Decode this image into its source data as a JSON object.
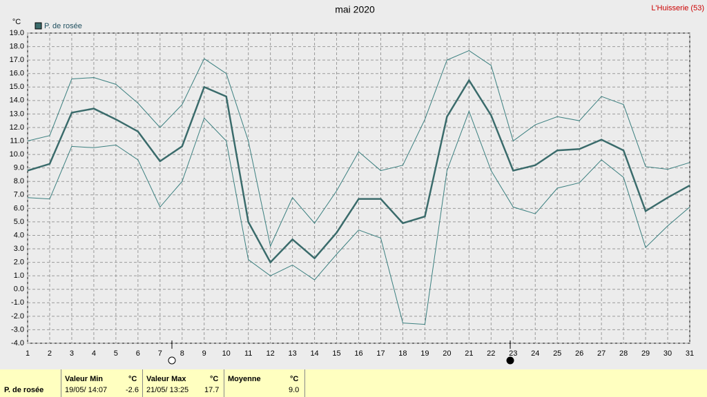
{
  "chart_data": {
    "type": "line",
    "title": "mai 2020",
    "location": "L'Huisserie (53)",
    "y_unit": "°C",
    "x": [
      1,
      2,
      3,
      4,
      5,
      6,
      7,
      8,
      9,
      10,
      11,
      12,
      13,
      14,
      15,
      16,
      17,
      18,
      19,
      20,
      21,
      22,
      23,
      24,
      25,
      26,
      27,
      28,
      29,
      30,
      31
    ],
    "xlim": [
      1,
      31
    ],
    "xticks": [
      1,
      2,
      3,
      4,
      5,
      6,
      7,
      8,
      9,
      10,
      11,
      12,
      13,
      14,
      15,
      16,
      17,
      18,
      19,
      20,
      21,
      22,
      23,
      24,
      25,
      26,
      27,
      28,
      29,
      30,
      31
    ],
    "ylim": [
      -4,
      19
    ],
    "yticks": [
      {
        "value": -4,
        "label": "-4.0"
      },
      {
        "value": -3,
        "label": "-3.0"
      },
      {
        "value": -2,
        "label": "-2.0"
      },
      {
        "value": -1,
        "label": "-1.0"
      },
      {
        "value": 0,
        "label": "0.0"
      },
      {
        "value": 1,
        "label": "1.0"
      },
      {
        "value": 2,
        "label": "2.0"
      },
      {
        "value": 3,
        "label": "3.0"
      },
      {
        "value": 4,
        "label": "4.0"
      },
      {
        "value": 5,
        "label": "5.0"
      },
      {
        "value": 6,
        "label": "6.0"
      },
      {
        "value": 7,
        "label": "7.0"
      },
      {
        "value": 8,
        "label": "8.0"
      },
      {
        "value": 9,
        "label": "9.0"
      },
      {
        "value": 10,
        "label": "10.0"
      },
      {
        "value": 11,
        "label": "11.0"
      },
      {
        "value": 12,
        "label": "12.0"
      },
      {
        "value": 13,
        "label": "13.0"
      },
      {
        "value": 14,
        "label": "14.0"
      },
      {
        "value": 15,
        "label": "15.0"
      },
      {
        "value": 16,
        "label": "16.0"
      },
      {
        "value": 17,
        "label": "17.0"
      },
      {
        "value": 18,
        "label": "18.0"
      },
      {
        "value": 19,
        "label": "19.0"
      }
    ],
    "grid": true,
    "series": [
      {
        "name": "P. de rosée",
        "color": "#3a6b6b",
        "width": 2.5,
        "values": [
          8.8,
          9.3,
          13.1,
          13.4,
          12.6,
          11.7,
          9.5,
          10.6,
          15.0,
          14.3,
          5.0,
          2.0,
          3.7,
          2.3,
          4.2,
          6.7,
          6.7,
          4.9,
          5.4,
          12.8,
          15.5,
          12.9,
          8.8,
          9.2,
          10.3,
          10.4,
          11.1,
          10.3,
          5.8,
          6.8,
          7.7
        ]
      },
      {
        "color": "#3a7f7f",
        "width": 1,
        "values": [
          11.0,
          11.4,
          15.6,
          15.7,
          15.2,
          13.8,
          12.0,
          13.7,
          17.1,
          16.0,
          11.0,
          3.2,
          6.8,
          4.9,
          7.3,
          10.2,
          8.8,
          9.2,
          12.6,
          17.0,
          17.7,
          16.6,
          11.0,
          12.2,
          12.8,
          12.5,
          14.3,
          13.7,
          9.1,
          8.9,
          9.4
        ]
      },
      {
        "color": "#3a7f7f",
        "width": 1,
        "values": [
          6.8,
          6.7,
          10.6,
          10.5,
          10.7,
          9.6,
          6.1,
          8.0,
          12.7,
          11.0,
          2.2,
          1.0,
          1.8,
          0.7,
          2.6,
          4.4,
          3.8,
          -2.5,
          -2.6,
          8.8,
          13.2,
          8.8,
          6.1,
          5.6,
          7.5,
          7.9,
          9.6,
          8.3,
          3.1,
          4.7,
          6.1
        ]
      }
    ]
  },
  "summary": {
    "row_label": "P. de rosée",
    "min": {
      "label": "Valeur Min",
      "unit": "°C",
      "when": "19/05/ 14:07",
      "value": "-2.6"
    },
    "max": {
      "label": "Valeur Max",
      "unit": "°C",
      "when": "21/05/ 13:25",
      "value": "17.7"
    },
    "mean": {
      "label": "Moyenne",
      "unit": "°C",
      "value": "9.0"
    }
  }
}
